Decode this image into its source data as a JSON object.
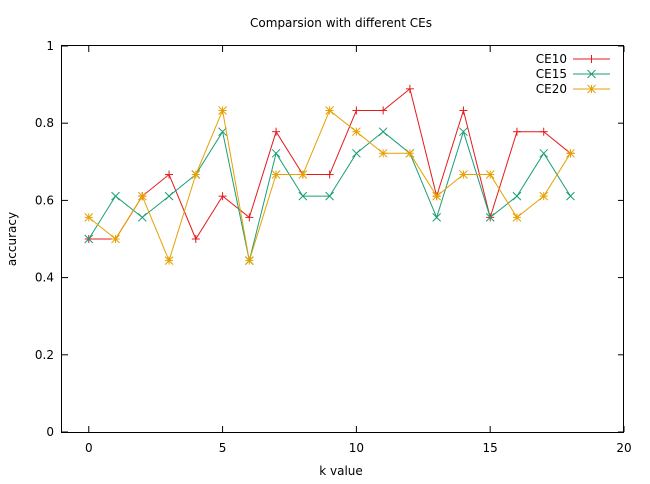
{
  "chart_data": {
    "type": "line",
    "title": "Comparsion with different CEs",
    "xlabel": "k value",
    "ylabel": "accuracy",
    "xlim": [
      -1,
      20
    ],
    "ylim": [
      0,
      1
    ],
    "x_ticks": [
      "0",
      "5",
      "10",
      "15",
      "20"
    ],
    "y_ticks": [
      "0",
      "0.2",
      "0.4",
      "0.6",
      "0.8",
      "1"
    ],
    "grid": false,
    "legend_position": "top-right",
    "x": [
      0,
      1,
      2,
      3,
      4,
      5,
      6,
      7,
      8,
      9,
      10,
      11,
      12,
      13,
      14,
      15,
      16,
      17,
      18
    ],
    "series": [
      {
        "name": "CE10",
        "color": "#e41a1c",
        "marker": "plus",
        "values": [
          0.5,
          0.5,
          0.611,
          0.667,
          0.5,
          0.611,
          0.556,
          0.778,
          0.667,
          0.667,
          0.833,
          0.833,
          0.889,
          0.611,
          0.833,
          0.556,
          0.778,
          0.778,
          0.722
        ]
      },
      {
        "name": "CE15",
        "color": "#1b9e77",
        "marker": "cross",
        "values": [
          0.5,
          0.611,
          0.556,
          0.611,
          0.667,
          0.778,
          0.444,
          0.722,
          0.611,
          0.611,
          0.722,
          0.778,
          0.722,
          0.556,
          0.778,
          0.556,
          0.611,
          0.722,
          0.611
        ]
      },
      {
        "name": "CE20",
        "color": "#e6a100",
        "marker": "star",
        "values": [
          0.556,
          0.5,
          0.611,
          0.444,
          0.667,
          0.833,
          0.444,
          0.667,
          0.667,
          0.833,
          0.778,
          0.722,
          0.722,
          0.611,
          0.667,
          0.667,
          0.556,
          0.611,
          0.722
        ]
      }
    ]
  }
}
